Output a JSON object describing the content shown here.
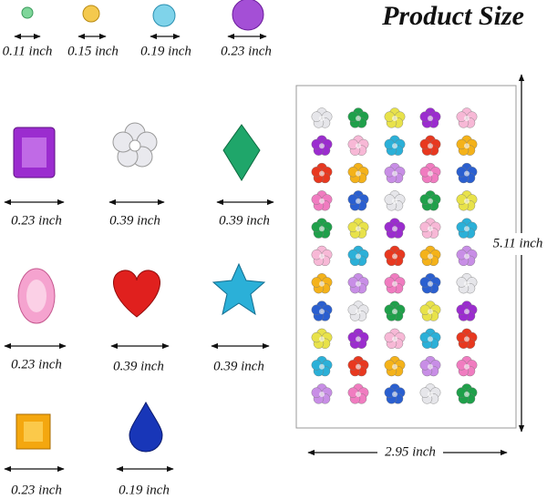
{
  "title": "Product Size",
  "gems": [
    "0.11 inch",
    "0.15 inch",
    "0.19 inch",
    "0.23 inch",
    "0.23 inch",
    "0.39 inch",
    "0.39 inch",
    "0.23 inch",
    "0.39 inch",
    "0.39 inch",
    "0.23 inch",
    "0.19 inch"
  ],
  "sheet": {
    "height": "5.11 inch",
    "width": "2.95 inch"
  }
}
